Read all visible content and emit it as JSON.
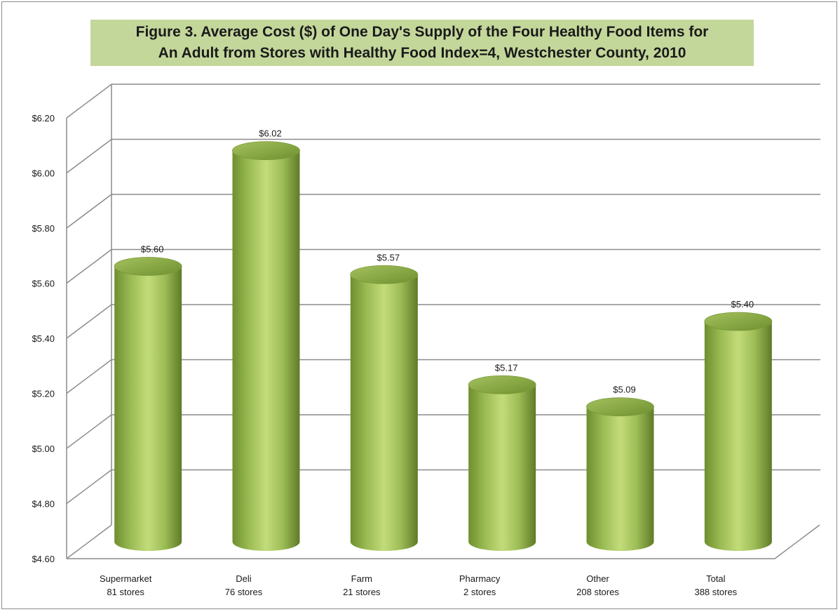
{
  "chart_data": {
    "type": "bar",
    "title_lines": [
      "Figure 3. Average Cost ($) of One Day's Supply of the Four Healthy Food Items for",
      "An Adult from Stores with Healthy Food Index=4, Westchester County, 2010"
    ],
    "categories": [
      "Supermarket",
      "Deli",
      "Farm",
      "Pharmacy",
      "Other",
      "Total"
    ],
    "category_sublabels": [
      "81 stores",
      "76 stores",
      "21 stores",
      "2 stores",
      "208 stores",
      "388 stores"
    ],
    "values": [
      5.6,
      6.02,
      5.57,
      5.17,
      5.09,
      5.4
    ],
    "data_labels": [
      "$5.60",
      "$6.02",
      "$5.57",
      "$5.17",
      "$5.09",
      "$5.40"
    ],
    "yticks": [
      4.6,
      4.8,
      5.0,
      5.2,
      5.4,
      5.6,
      5.8,
      6.0,
      6.2
    ],
    "ytick_labels": [
      "$4.60",
      "$4.80",
      "$5.00",
      "$5.20",
      "$5.40",
      "$5.60",
      "$5.80",
      "$6.00",
      "$6.20"
    ],
    "ylim": [
      4.6,
      6.2
    ],
    "xlabel": "",
    "ylabel": "",
    "grid": true,
    "legend": "none",
    "style": "3d-cylinder",
    "colors": {
      "bar_light": "#c3dc7a",
      "bar_mid": "#9bbb59",
      "bar_dark": "#5f7a28",
      "bar_top": "#8aaa45",
      "grid": "#8c8c8c",
      "title_bg": "#c4d79b"
    }
  }
}
